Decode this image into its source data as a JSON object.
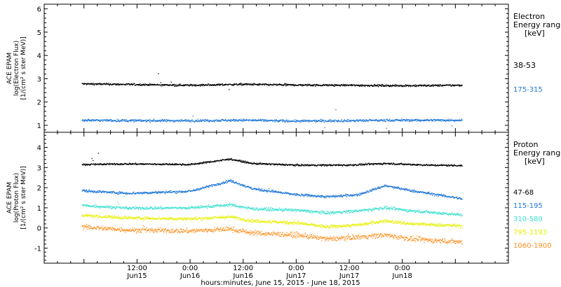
{
  "chart_data": [
    {
      "type": "scatter",
      "panel": "electron",
      "ylabel": [
        "ACE EPAM",
        "log(Electron Flux)",
        "[1/(cm² s ster MeV)]"
      ],
      "ylim": [
        0.7,
        6.2
      ],
      "yticks": [
        1,
        2,
        3,
        4,
        5,
        6
      ],
      "legend_title": [
        "Electron",
        "Energy ranges",
        "[keV]"
      ],
      "legend_placement": "right",
      "series": [
        {
          "name": "38-53",
          "color": "#000000",
          "profile": [
            [
              -0.5,
              2.78
            ],
            [
              12,
              2.75
            ],
            [
              24,
              2.72
            ],
            [
              36,
              2.76
            ],
            [
              48,
              2.73
            ],
            [
              60,
              2.72
            ],
            [
              72,
              2.7
            ],
            [
              85.5,
              2.72
            ]
          ],
          "noise": 0.04
        },
        {
          "name": "175-315",
          "color": "#1f77d8",
          "profile": [
            [
              -0.5,
              1.22
            ],
            [
              12,
              1.2
            ],
            [
              24,
              1.2
            ],
            [
              36,
              1.22
            ],
            [
              48,
              1.18
            ],
            [
              60,
              1.2
            ],
            [
              72,
              1.22
            ],
            [
              85.5,
              1.22
            ]
          ],
          "noise": 0.05
        }
      ]
    },
    {
      "type": "scatter",
      "panel": "proton",
      "ylabel": [
        "ACE EPAM",
        "log(Proton Flux)",
        "[1/(cm² s ster MeV)]"
      ],
      "ylim": [
        -1.75,
        4.75
      ],
      "yticks": [
        -1,
        0,
        1,
        2,
        3,
        4
      ],
      "legend_title": [
        "Proton",
        "Energy ranges",
        "[keV]"
      ],
      "legend_placement": "right",
      "series": [
        {
          "name": "47-68",
          "color": "#000000",
          "profile": [
            [
              -0.5,
              3.15
            ],
            [
              10,
              3.18
            ],
            [
              24,
              3.15
            ],
            [
              33,
              3.42
            ],
            [
              38,
              3.2
            ],
            [
              48,
              3.12
            ],
            [
              60,
              3.12
            ],
            [
              68,
              3.2
            ],
            [
              78,
              3.12
            ],
            [
              85.5,
              3.1
            ]
          ],
          "noise": 0.04
        },
        {
          "name": "115-195",
          "color": "#1f77d8",
          "profile": [
            [
              -0.5,
              1.85
            ],
            [
              10,
              1.72
            ],
            [
              24,
              1.82
            ],
            [
              33,
              2.35
            ],
            [
              38,
              1.95
            ],
            [
              48,
              1.65
            ],
            [
              55,
              1.55
            ],
            [
              62,
              1.65
            ],
            [
              68,
              2.1
            ],
            [
              74,
              1.85
            ],
            [
              85.5,
              1.45
            ]
          ],
          "noise": 0.06
        },
        {
          "name": "310-580",
          "color": "#3de0d0",
          "profile": [
            [
              -0.5,
              1.12
            ],
            [
              10,
              0.98
            ],
            [
              24,
              1.0
            ],
            [
              33,
              1.15
            ],
            [
              38,
              0.95
            ],
            [
              48,
              0.88
            ],
            [
              55,
              0.75
            ],
            [
              62,
              0.85
            ],
            [
              68,
              1.0
            ],
            [
              74,
              0.85
            ],
            [
              85.5,
              0.65
            ]
          ],
          "noise": 0.07
        },
        {
          "name": "795-1193",
          "color": "#e6f000",
          "profile": [
            [
              -0.5,
              0.62
            ],
            [
              10,
              0.5
            ],
            [
              24,
              0.45
            ],
            [
              33,
              0.55
            ],
            [
              38,
              0.35
            ],
            [
              48,
              0.25
            ],
            [
              55,
              0.05
            ],
            [
              62,
              0.15
            ],
            [
              68,
              0.35
            ],
            [
              74,
              0.2
            ],
            [
              85.5,
              0.1
            ]
          ],
          "noise": 0.08
        },
        {
          "name": "1060-1900",
          "color": "#ff9020",
          "profile": [
            [
              -0.5,
              0.05
            ],
            [
              10,
              -0.1
            ],
            [
              24,
              -0.15
            ],
            [
              33,
              -0.05
            ],
            [
              38,
              -0.25
            ],
            [
              48,
              -0.35
            ],
            [
              55,
              -0.55
            ],
            [
              62,
              -0.45
            ],
            [
              68,
              -0.35
            ],
            [
              74,
              -0.55
            ],
            [
              85.5,
              -0.7
            ]
          ],
          "noise": 0.12
        }
      ]
    }
  ],
  "time_axis": {
    "xlim_hours": [
      -9,
      96
    ],
    "major_ticks": [
      {
        "hour": 12,
        "time": "12:00",
        "date": "Jun15"
      },
      {
        "hour": 24,
        "time": "0:00",
        "date": "Jun16"
      },
      {
        "hour": 36,
        "time": "12:00",
        "date": "Jun16"
      },
      {
        "hour": 48,
        "time": "0:00",
        "date": "Jun17"
      },
      {
        "hour": 60,
        "time": "12:00",
        "date": "Jun17"
      },
      {
        "hour": 72,
        "time": "0:00",
        "date": "Jun18"
      }
    ],
    "minor_step_hours": 3,
    "xlabel": "hours:minutes, June 15, 2015 - June 18, 2015"
  }
}
